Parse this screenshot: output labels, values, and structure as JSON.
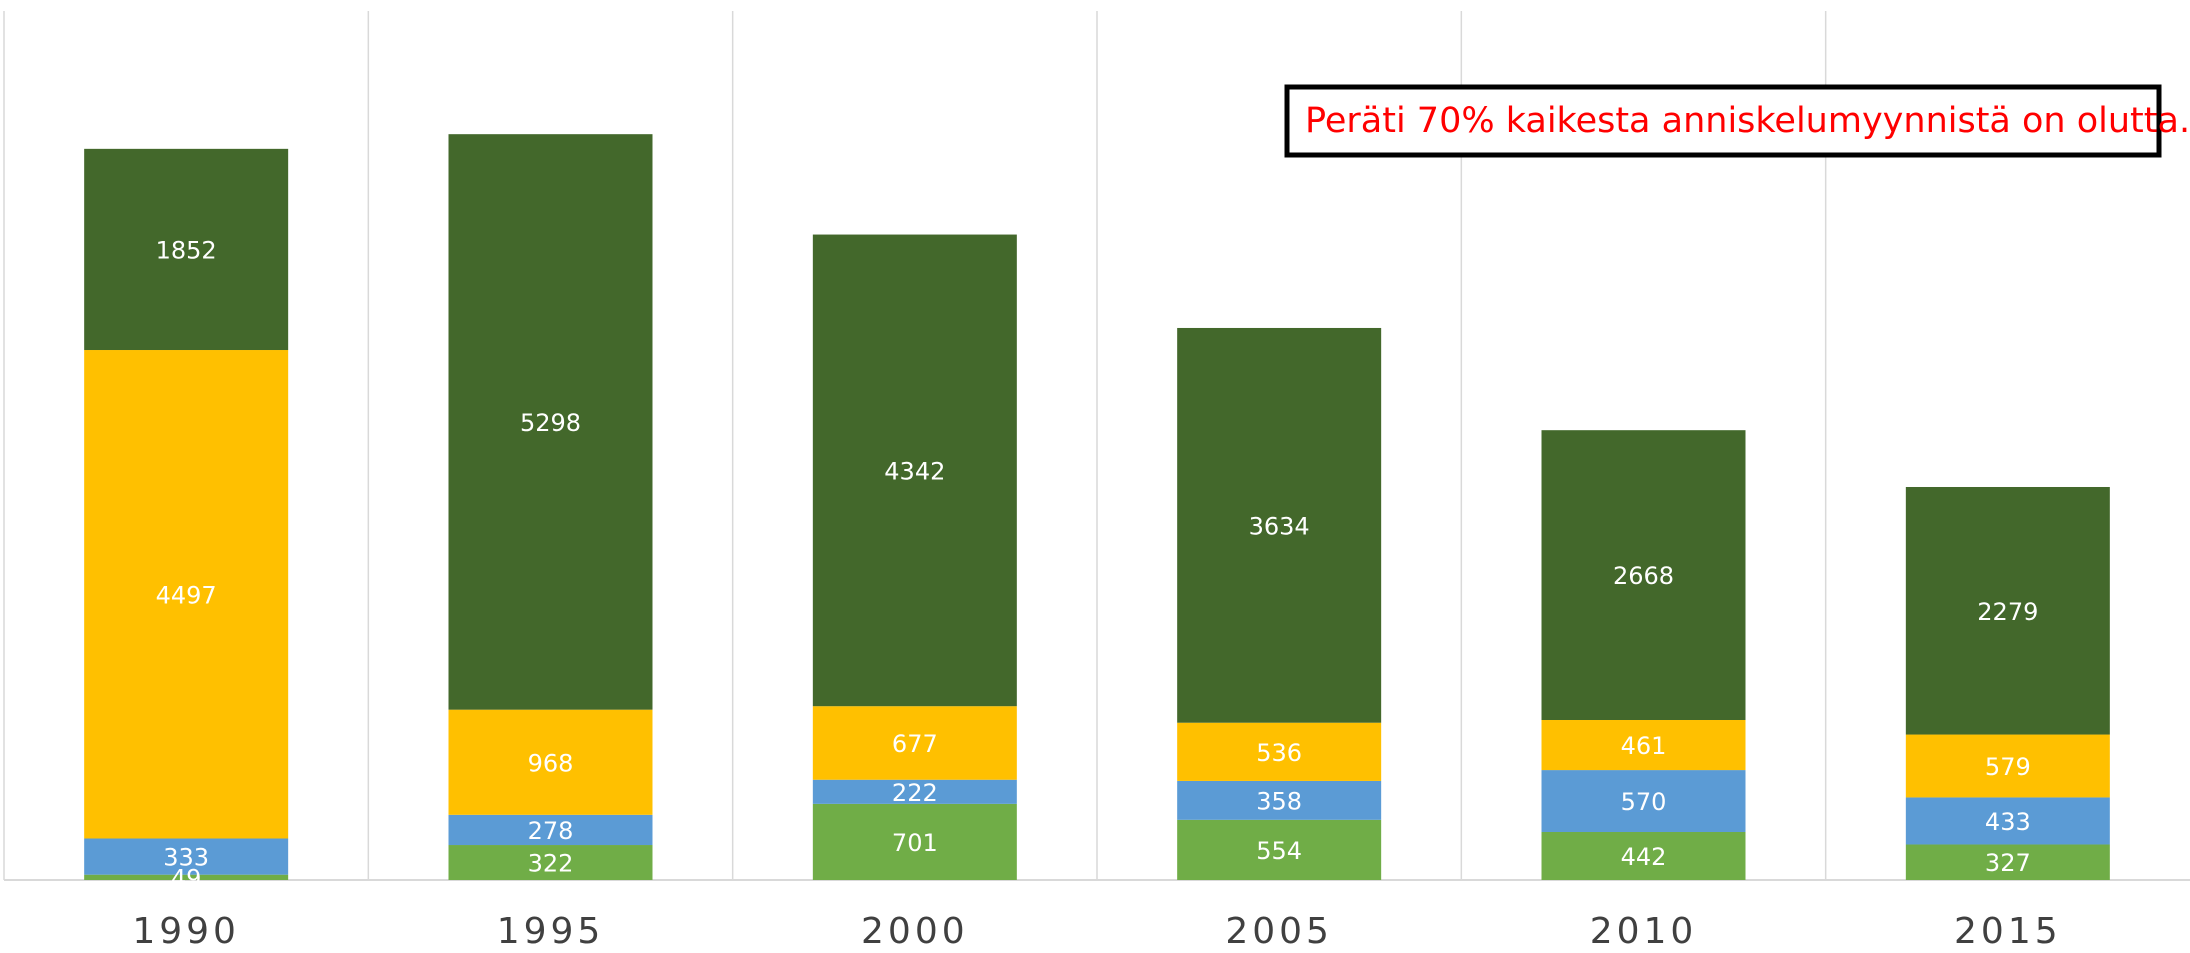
{
  "chart_data": {
    "type": "stacked_bar",
    "annotation": "Peräti 70% kaikesta anniskelumyynnistä on olutta.",
    "categories": [
      "1990",
      "1995",
      "2000",
      "2005",
      "2010",
      "2015"
    ],
    "series": [
      {
        "color": "#70ad47",
        "values": [
          49,
          322,
          701,
          554,
          442,
          327
        ]
      },
      {
        "color": "#5b9bd5",
        "values": [
          333,
          278,
          222,
          358,
          570,
          433
        ]
      },
      {
        "color": "#ffc000",
        "values": [
          4497,
          968,
          677,
          536,
          461,
          579
        ]
      },
      {
        "color": "#43682b",
        "values": [
          1852,
          5298,
          4342,
          3634,
          2668,
          2279
        ]
      }
    ],
    "ylim": [
      0,
      8000
    ]
  }
}
